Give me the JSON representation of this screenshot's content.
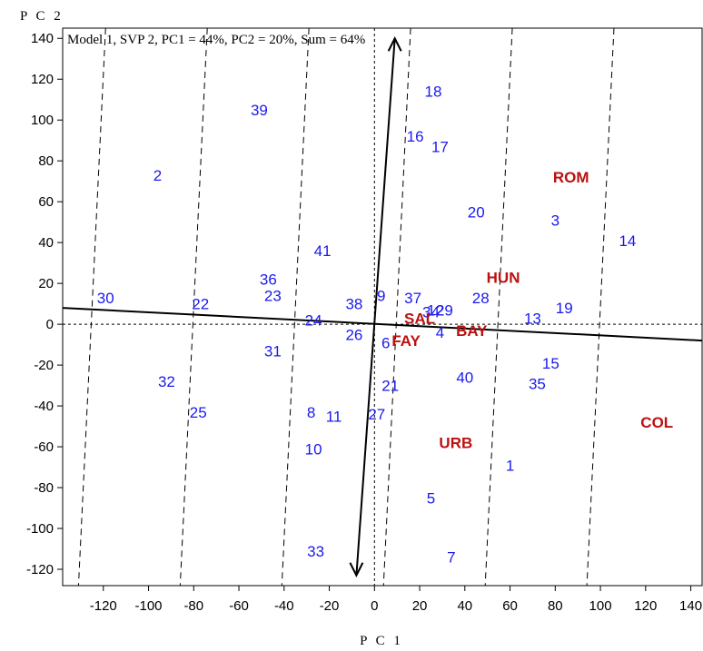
{
  "chart_data": {
    "type": "scatter",
    "title": "Model 1, SVP 2, PC1 = 44%, PC2 = 20%, Sum = 64%",
    "xlabel": "P C 1",
    "ylabel": "P C 2",
    "xlim": [
      -138,
      145
    ],
    "ylim": [
      -128,
      145
    ],
    "xticks": [
      -120,
      -100,
      -80,
      -60,
      -40,
      -20,
      0,
      20,
      40,
      60,
      80,
      100,
      120,
      140
    ],
    "yticks": [
      -120,
      -100,
      -80,
      -60,
      -40,
      -20,
      0,
      20,
      40,
      60,
      80,
      100,
      120,
      140
    ],
    "colors": {
      "genotype": "#1a1aee",
      "environment": "#bb1111",
      "axis": "#000000"
    },
    "series": [
      {
        "points": [
          {
            "label": "1",
            "x": 60,
            "y": -69
          },
          {
            "label": "2",
            "x": -96,
            "y": 73
          },
          {
            "label": "3",
            "x": 80,
            "y": 51
          },
          {
            "label": "4",
            "x": 29,
            "y": -4
          },
          {
            "label": "5",
            "x": 25,
            "y": -85
          },
          {
            "label": "6",
            "x": 5,
            "y": -9
          },
          {
            "label": "7",
            "x": 34,
            "y": -114
          },
          {
            "label": "8",
            "x": -28,
            "y": -43
          },
          {
            "label": "9",
            "x": 3,
            "y": 14
          },
          {
            "label": "10",
            "x": -27,
            "y": -61
          },
          {
            "label": "11",
            "x": -18,
            "y": -45
          },
          {
            "label": "12",
            "x": 27,
            "y": 7
          },
          {
            "label": "13",
            "x": 70,
            "y": 3
          },
          {
            "label": "14",
            "x": 112,
            "y": 41
          },
          {
            "label": "15",
            "x": 78,
            "y": -19
          },
          {
            "label": "16",
            "x": 18,
            "y": 92
          },
          {
            "label": "17",
            "x": 29,
            "y": 87
          },
          {
            "label": "18",
            "x": 26,
            "y": 114
          },
          {
            "label": "19",
            "x": 84,
            "y": 8
          },
          {
            "label": "20",
            "x": 45,
            "y": 55
          },
          {
            "label": "21",
            "x": 7,
            "y": -30
          },
          {
            "label": "22",
            "x": -77,
            "y": 10
          },
          {
            "label": "23",
            "x": -45,
            "y": 14
          },
          {
            "label": "24",
            "x": -27,
            "y": 2
          },
          {
            "label": "25",
            "x": -78,
            "y": -43
          },
          {
            "label": "26",
            "x": -9,
            "y": -5
          },
          {
            "label": "27",
            "x": 1,
            "y": -44
          },
          {
            "label": "28",
            "x": 47,
            "y": 13
          },
          {
            "label": "29",
            "x": 31,
            "y": 7
          },
          {
            "label": "30",
            "x": -119,
            "y": 13
          },
          {
            "label": "31",
            "x": -45,
            "y": -13
          },
          {
            "label": "32",
            "x": -92,
            "y": -28
          },
          {
            "label": "33",
            "x": -26,
            "y": -111
          },
          {
            "label": "34",
            "x": 25,
            "y": 6
          },
          {
            "label": "35",
            "x": 72,
            "y": -29
          },
          {
            "label": "36",
            "x": -47,
            "y": 22
          },
          {
            "label": "37",
            "x": 17,
            "y": 13
          },
          {
            "label": "38",
            "x": -9,
            "y": 10
          },
          {
            "label": "39",
            "x": -51,
            "y": 105
          },
          {
            "label": "40",
            "x": 40,
            "y": -26
          },
          {
            "label": "41",
            "x": -23,
            "y": 36
          }
        ]
      },
      {
        "points": [
          {
            "label": "ROM",
            "x": 87,
            "y": 72
          },
          {
            "label": "HUN",
            "x": 57,
            "y": 23
          },
          {
            "label": "SAL",
            "x": 20,
            "y": 3
          },
          {
            "label": "BAY",
            "x": 43,
            "y": -3
          },
          {
            "label": "FAY",
            "x": 14,
            "y": -8
          },
          {
            "label": "URB",
            "x": 36,
            "y": -58
          },
          {
            "label": "COL",
            "x": 125,
            "y": -48
          }
        ]
      }
    ]
  }
}
